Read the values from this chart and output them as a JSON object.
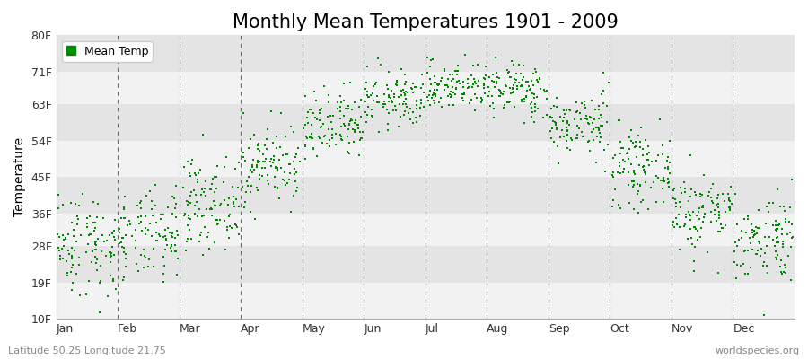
{
  "title": "Monthly Mean Temperatures 1901 - 2009",
  "ylabel": "Temperature",
  "xlabel_left": "Latitude 50.25 Longitude 21.75",
  "xlabel_right": "worldspecies.org",
  "legend_label": "Mean Temp",
  "yticks": [
    10,
    19,
    28,
    36,
    45,
    54,
    63,
    71,
    80
  ],
  "ytick_labels": [
    "10F",
    "19F",
    "28F",
    "36F",
    "45F",
    "54F",
    "63F",
    "71F",
    "80F"
  ],
  "months": [
    "Jan",
    "Feb",
    "Mar",
    "Apr",
    "May",
    "Jun",
    "Jul",
    "Aug",
    "Sep",
    "Oct",
    "Nov",
    "Dec"
  ],
  "dot_color": "#008800",
  "bg_color_light": "#f2f2f2",
  "bg_color_dark": "#e4e4e4",
  "num_years": 109,
  "lat": 50.25,
  "lon": 21.75,
  "seed": 42,
  "monthly_mean_F": [
    28.5,
    30.0,
    38.5,
    48.0,
    57.0,
    64.0,
    67.5,
    66.5,
    58.0,
    47.0,
    36.5,
    30.0
  ],
  "monthly_std_F": [
    6.5,
    5.5,
    5.5,
    5.0,
    4.5,
    3.5,
    3.0,
    3.5,
    4.0,
    4.5,
    5.0,
    5.5
  ],
  "title_fontsize": 15,
  "axis_label_fontsize": 10,
  "tick_fontsize": 9,
  "legend_fontsize": 9,
  "ylim_min": 10,
  "ylim_max": 80
}
